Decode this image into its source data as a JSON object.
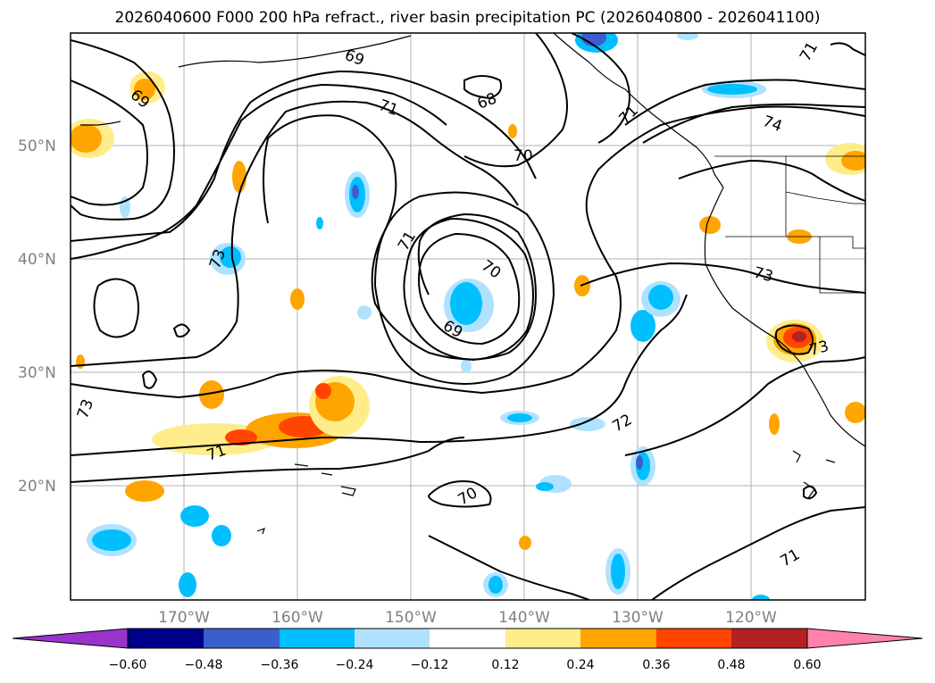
{
  "title": "2026040600 F000 200 hPa refract., river basin precipitation PC (2026040800 - 2026041100)",
  "latitudes": [
    "50°N",
    "40°N",
    "30°N",
    "20°N"
  ],
  "longitudes": [
    "170°W",
    "160°W",
    "150°W",
    "140°W",
    "130°W",
    "120°W"
  ],
  "colorbar": {
    "ticks": [
      "−0.60",
      "−0.48",
      "−0.36",
      "−0.24",
      "−0.12",
      "0.12",
      "0.24",
      "0.36",
      "0.48",
      "0.60"
    ],
    "colors": [
      "#9933cc",
      "#00008b",
      "#3a5fcd",
      "#00bfff",
      "#b0e2ff",
      "#ffffff",
      "#ffec8b",
      "#ffa500",
      "#ff4500",
      "#b22222",
      "#ff82ab"
    ]
  },
  "contour_labels": [
    "69",
    "69",
    "71",
    "68",
    "70",
    "71",
    "70",
    "69",
    "73",
    "71",
    "72",
    "70",
    "73",
    "71",
    "74",
    "73",
    "71",
    "71",
    "73"
  ]
}
